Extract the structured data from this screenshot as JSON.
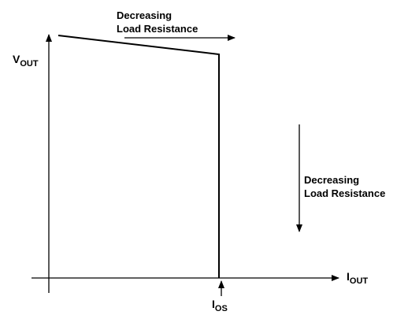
{
  "diagram": {
    "y_axis": {
      "main": "V",
      "sub": "OUT"
    },
    "x_axis": {
      "main": "I",
      "sub": "OUT"
    },
    "marker": {
      "main": "I",
      "sub": "OS"
    },
    "top_annotation": {
      "line1": "Decreasing",
      "line2": "Load Resistance"
    },
    "side_annotation": {
      "line1": "Decreasing",
      "line2": "Load Resistance"
    },
    "stroke_color": "#000000",
    "background_color": "#ffffff"
  }
}
